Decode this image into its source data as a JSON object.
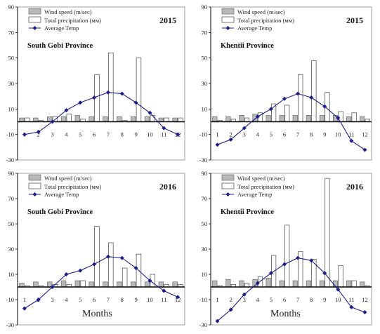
{
  "figure": {
    "xlabel": "Months",
    "legend": {
      "wind": "Wind speed (m/sec)",
      "precip": "Total precipitation (мм)",
      "temp": "Average Temp"
    },
    "colors": {
      "wind": "#b9b9b9",
      "precip": "#ffffff",
      "temp": "#1c1c8c",
      "axis": "#000000"
    }
  },
  "chart_data": [
    {
      "type": "bar",
      "year": "2015",
      "province": "South Gobi Province",
      "categories": [
        "1",
        "2",
        "3",
        "4",
        "5",
        "6",
        "7",
        "8",
        "9",
        "10",
        "11",
        "12"
      ],
      "ylim": [
        -30,
        90
      ],
      "yticks": [
        -30,
        -10,
        10,
        30,
        50,
        70,
        90
      ],
      "series": [
        {
          "name": "Wind speed (m/sec)",
          "kind": "bar",
          "values": [
            3,
            3,
            4,
            4,
            5,
            4,
            4,
            4,
            4,
            4,
            3,
            3
          ]
        },
        {
          "name": "Total precipitation (мм)",
          "kind": "bar",
          "values": [
            3,
            1,
            4,
            6,
            2,
            37,
            54,
            1,
            50,
            5,
            3,
            3
          ]
        },
        {
          "name": "Average Temp",
          "kind": "line",
          "values": [
            -10,
            -8,
            0,
            9,
            15,
            19,
            23,
            22,
            15,
            7,
            -5,
            -10
          ]
        }
      ]
    },
    {
      "type": "bar",
      "year": "2015",
      "province": "Khentii Province",
      "categories": [
        "1",
        "2",
        "3",
        "4",
        "5",
        "6",
        "7",
        "8",
        "9",
        "10",
        "11",
        "12"
      ],
      "ylim": [
        -30,
        90
      ],
      "yticks": [
        -30,
        -10,
        10,
        30,
        50,
        70,
        90
      ],
      "series": [
        {
          "name": "Wind speed (m/sec)",
          "kind": "bar",
          "values": [
            4,
            4,
            5,
            6,
            5,
            5,
            5,
            5,
            5,
            5,
            4,
            4
          ]
        },
        {
          "name": "Total precipitation (мм)",
          "kind": "bar",
          "values": [
            1,
            2,
            3,
            7,
            14,
            13,
            37,
            48,
            23,
            8,
            7,
            2
          ]
        },
        {
          "name": "Average Temp",
          "kind": "line",
          "values": [
            -18,
            -14,
            -5,
            4,
            10,
            18,
            22,
            19,
            12,
            3,
            -15,
            -22
          ]
        }
      ]
    },
    {
      "type": "bar",
      "year": "2016",
      "province": "South Gobi Province",
      "categories": [
        "1",
        "2",
        "3",
        "4",
        "5",
        "6",
        "7",
        "8",
        "9",
        "10",
        "11",
        "12"
      ],
      "ylim": [
        -30,
        90
      ],
      "yticks": [
        -30,
        -10,
        10,
        30,
        50,
        70,
        90
      ],
      "series": [
        {
          "name": "Wind speed (m/sec)",
          "kind": "bar",
          "values": [
            3,
            4,
            4,
            5,
            5,
            4,
            4,
            4,
            4,
            4,
            4,
            4
          ]
        },
        {
          "name": "Total precipitation (мм)",
          "kind": "bar",
          "values": [
            1,
            1,
            2,
            2,
            5,
            48,
            35,
            15,
            26,
            10,
            2,
            2
          ]
        },
        {
          "name": "Average Temp",
          "kind": "line",
          "values": [
            -17,
            -10,
            0,
            10,
            13,
            18,
            24,
            23,
            15,
            5,
            -3,
            -8
          ]
        }
      ]
    },
    {
      "type": "bar",
      "year": "2016",
      "province": "Khentii Province",
      "categories": [
        "1",
        "2",
        "3",
        "4",
        "5",
        "6",
        "7",
        "8",
        "9",
        "10",
        "11",
        "12"
      ],
      "ylim": [
        -30,
        90
      ],
      "yticks": [
        -30,
        -10,
        10,
        30,
        50,
        70,
        90
      ],
      "series": [
        {
          "name": "Wind speed (m/sec)",
          "kind": "bar",
          "values": [
            5,
            6,
            5,
            6,
            7,
            5,
            5,
            5,
            5,
            5,
            5,
            4
          ]
        },
        {
          "name": "Total precipitation (мм)",
          "kind": "bar",
          "values": [
            1,
            2,
            3,
            8,
            25,
            49,
            28,
            22,
            86,
            17,
            5,
            1
          ]
        },
        {
          "name": "Average Temp",
          "kind": "line",
          "values": [
            -27,
            -18,
            -6,
            3,
            11,
            18,
            23,
            21,
            11,
            -2,
            -16,
            -20
          ]
        }
      ]
    }
  ]
}
